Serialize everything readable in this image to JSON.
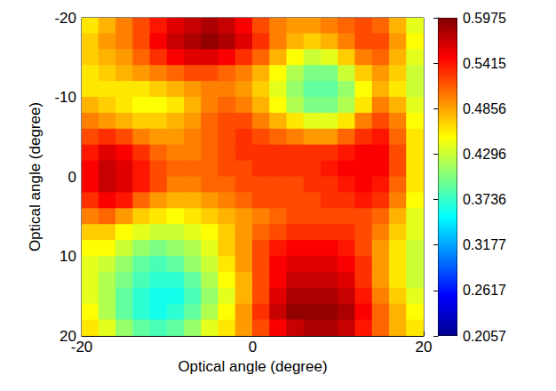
{
  "chart_data": {
    "type": "heatmap",
    "xlabel": "Optical angle (degree)",
    "ylabel": "Optical angle (degree)",
    "xlim": [
      -20,
      20
    ],
    "ylim": [
      20,
      -20
    ],
    "xticks": [
      -20,
      0,
      20
    ],
    "yticks": [
      -20,
      -10,
      0,
      10,
      20
    ],
    "x_edges": [
      -20,
      -18,
      -16,
      -14,
      -12,
      -10,
      -8,
      -6,
      -4,
      -2,
      0,
      2,
      4,
      6,
      8,
      10,
      12,
      14,
      16,
      18,
      20
    ],
    "y_edges": [
      -20,
      -18,
      -16,
      -14,
      -12,
      -10,
      -8,
      -6,
      -4,
      -2,
      0,
      2,
      4,
      6,
      8,
      10,
      12,
      14,
      16,
      18,
      20
    ],
    "values": [
      [
        0.46,
        0.48,
        0.5,
        0.52,
        0.54,
        0.56,
        0.57,
        0.58,
        0.57,
        0.55,
        0.52,
        0.5,
        0.49,
        0.49,
        0.5,
        0.51,
        0.52,
        0.51,
        0.48,
        0.44
      ],
      [
        0.47,
        0.49,
        0.5,
        0.52,
        0.55,
        0.57,
        0.58,
        0.59,
        0.58,
        0.56,
        0.53,
        0.5,
        0.48,
        0.47,
        0.48,
        0.5,
        0.52,
        0.52,
        0.49,
        0.45
      ],
      [
        0.47,
        0.48,
        0.49,
        0.51,
        0.53,
        0.55,
        0.56,
        0.56,
        0.55,
        0.53,
        0.51,
        0.48,
        0.45,
        0.43,
        0.44,
        0.47,
        0.5,
        0.51,
        0.48,
        0.44
      ],
      [
        0.46,
        0.47,
        0.48,
        0.49,
        0.5,
        0.51,
        0.52,
        0.52,
        0.51,
        0.5,
        0.48,
        0.45,
        0.42,
        0.4,
        0.4,
        0.43,
        0.47,
        0.49,
        0.47,
        0.43
      ],
      [
        0.46,
        0.46,
        0.46,
        0.46,
        0.47,
        0.48,
        0.49,
        0.5,
        0.5,
        0.49,
        0.47,
        0.44,
        0.41,
        0.39,
        0.39,
        0.41,
        0.45,
        0.48,
        0.46,
        0.43
      ],
      [
        0.48,
        0.47,
        0.46,
        0.45,
        0.45,
        0.46,
        0.48,
        0.5,
        0.51,
        0.5,
        0.48,
        0.45,
        0.42,
        0.4,
        0.4,
        0.42,
        0.46,
        0.5,
        0.48,
        0.44
      ],
      [
        0.5,
        0.49,
        0.48,
        0.47,
        0.47,
        0.48,
        0.49,
        0.51,
        0.52,
        0.52,
        0.5,
        0.48,
        0.46,
        0.44,
        0.44,
        0.46,
        0.5,
        0.52,
        0.5,
        0.45
      ],
      [
        0.52,
        0.53,
        0.52,
        0.5,
        0.49,
        0.49,
        0.5,
        0.51,
        0.52,
        0.53,
        0.52,
        0.51,
        0.5,
        0.49,
        0.49,
        0.51,
        0.53,
        0.54,
        0.51,
        0.46
      ],
      [
        0.54,
        0.56,
        0.55,
        0.53,
        0.51,
        0.5,
        0.5,
        0.51,
        0.52,
        0.53,
        0.53,
        0.53,
        0.53,
        0.53,
        0.53,
        0.54,
        0.55,
        0.55,
        0.52,
        0.46
      ],
      [
        0.55,
        0.57,
        0.56,
        0.54,
        0.52,
        0.51,
        0.51,
        0.51,
        0.52,
        0.52,
        0.53,
        0.53,
        0.53,
        0.53,
        0.54,
        0.55,
        0.55,
        0.55,
        0.52,
        0.46
      ],
      [
        0.55,
        0.57,
        0.56,
        0.54,
        0.52,
        0.5,
        0.5,
        0.51,
        0.51,
        0.52,
        0.52,
        0.52,
        0.52,
        0.53,
        0.53,
        0.54,
        0.55,
        0.54,
        0.51,
        0.46
      ],
      [
        0.53,
        0.55,
        0.54,
        0.51,
        0.49,
        0.48,
        0.48,
        0.49,
        0.5,
        0.51,
        0.52,
        0.52,
        0.52,
        0.52,
        0.53,
        0.53,
        0.54,
        0.53,
        0.5,
        0.45
      ],
      [
        0.5,
        0.51,
        0.49,
        0.47,
        0.46,
        0.45,
        0.46,
        0.47,
        0.48,
        0.49,
        0.5,
        0.51,
        0.52,
        0.52,
        0.52,
        0.52,
        0.52,
        0.51,
        0.48,
        0.44
      ],
      [
        0.47,
        0.47,
        0.45,
        0.44,
        0.43,
        0.43,
        0.44,
        0.45,
        0.47,
        0.49,
        0.51,
        0.52,
        0.53,
        0.53,
        0.53,
        0.53,
        0.52,
        0.5,
        0.47,
        0.44
      ],
      [
        0.45,
        0.45,
        0.43,
        0.41,
        0.4,
        0.41,
        0.42,
        0.44,
        0.47,
        0.49,
        0.52,
        0.54,
        0.55,
        0.55,
        0.55,
        0.54,
        0.52,
        0.49,
        0.46,
        0.43
      ],
      [
        0.44,
        0.43,
        0.41,
        0.39,
        0.38,
        0.39,
        0.41,
        0.43,
        0.46,
        0.49,
        0.52,
        0.55,
        0.56,
        0.56,
        0.56,
        0.55,
        0.53,
        0.49,
        0.46,
        0.43
      ],
      [
        0.44,
        0.42,
        0.4,
        0.38,
        0.37,
        0.37,
        0.39,
        0.42,
        0.45,
        0.48,
        0.52,
        0.55,
        0.57,
        0.57,
        0.57,
        0.56,
        0.53,
        0.49,
        0.46,
        0.43
      ],
      [
        0.44,
        0.42,
        0.39,
        0.37,
        0.36,
        0.36,
        0.38,
        0.41,
        0.44,
        0.48,
        0.52,
        0.56,
        0.58,
        0.58,
        0.58,
        0.57,
        0.54,
        0.5,
        0.47,
        0.44
      ],
      [
        0.45,
        0.42,
        0.39,
        0.37,
        0.36,
        0.37,
        0.39,
        0.42,
        0.45,
        0.49,
        0.53,
        0.57,
        0.59,
        0.59,
        0.59,
        0.58,
        0.55,
        0.51,
        0.48,
        0.45
      ],
      [
        0.46,
        0.44,
        0.41,
        0.39,
        0.38,
        0.39,
        0.41,
        0.44,
        0.46,
        0.49,
        0.52,
        0.55,
        0.57,
        0.58,
        0.58,
        0.57,
        0.54,
        0.51,
        0.48,
        0.46
      ]
    ],
    "colorbar_range": [
      0.2057,
      0.5975
    ],
    "colorbar_ticks": [
      0.2057,
      0.2617,
      0.3177,
      0.3736,
      0.4296,
      0.4856,
      0.5415,
      0.5975
    ]
  }
}
